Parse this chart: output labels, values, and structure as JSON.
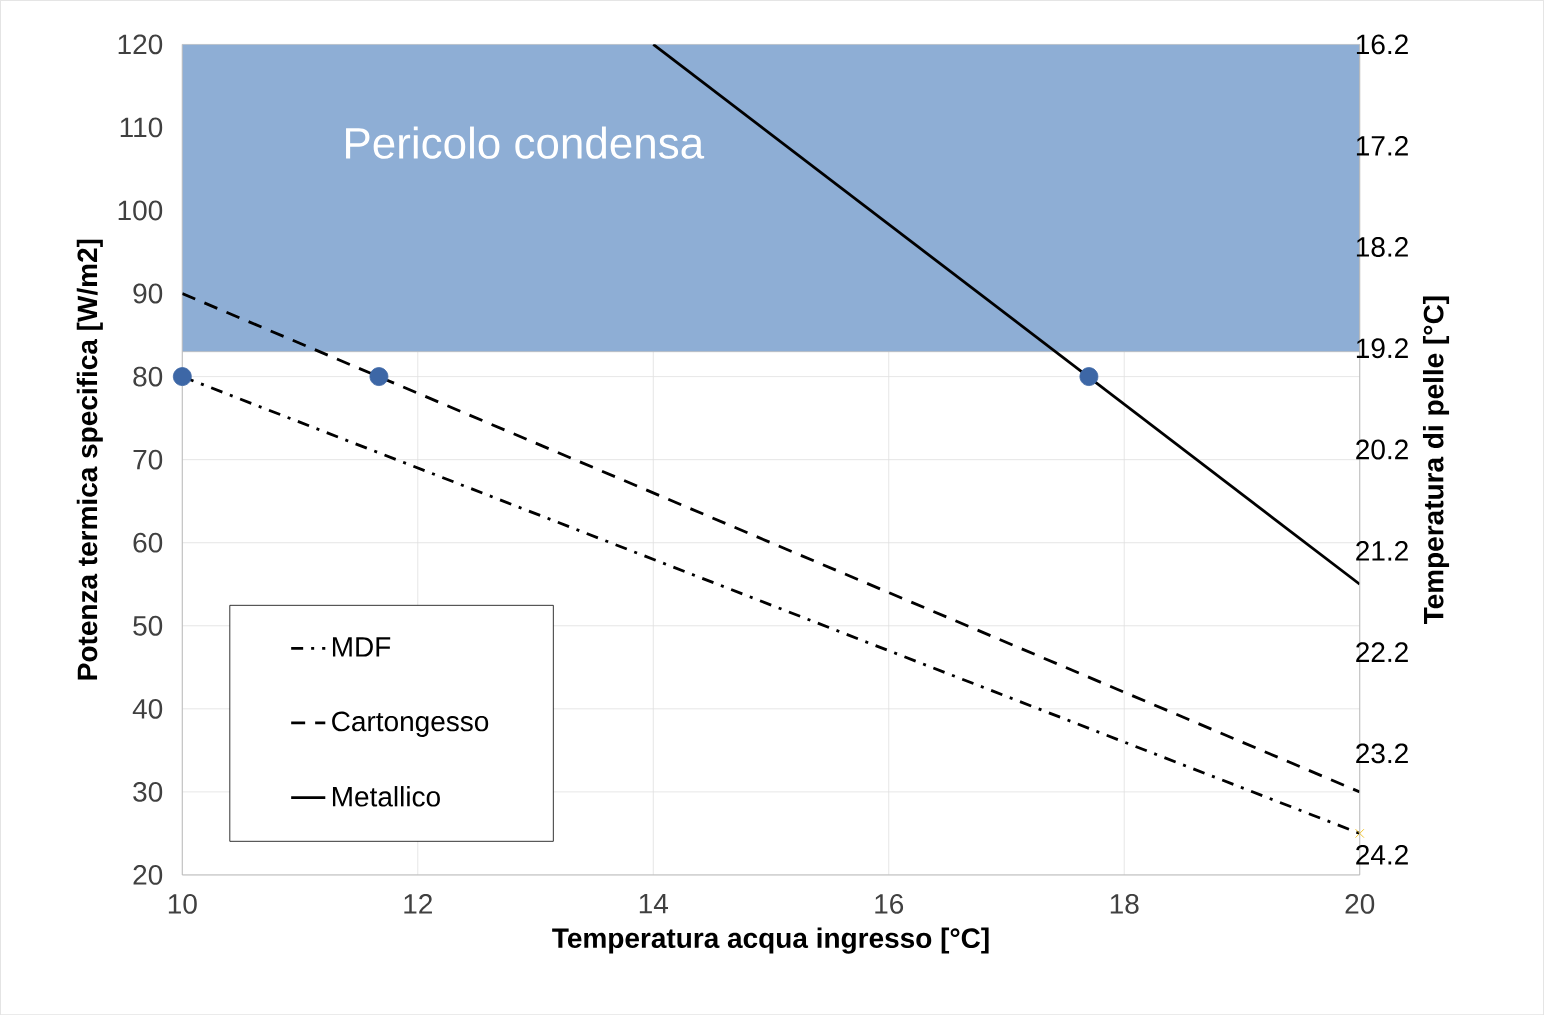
{
  "chart_data": {
    "type": "line",
    "xlabel": "Temperatura acqua ingresso [°C]",
    "ylabel": "Potenza termica specifica [W/m2]",
    "y2label": "Temperatura di pelle [°C]",
    "xlim": [
      10,
      20
    ],
    "xticks": [
      10,
      12,
      14,
      16,
      18,
      20
    ],
    "ylim": [
      20,
      120
    ],
    "yticks": [
      20,
      30,
      40,
      50,
      60,
      70,
      80,
      90,
      100,
      110,
      120
    ],
    "y2lim": [
      24.4,
      16.2
    ],
    "y2ticks": [
      16.2,
      17.2,
      18.2,
      19.2,
      20.2,
      21.2,
      22.2,
      23.2,
      24.2
    ],
    "grid": true,
    "legend": "bottom left",
    "bands": [
      {
        "axis": "y",
        "from": 83,
        "to": 120,
        "label": "Pericolo condensa",
        "color": "#8eaed5"
      }
    ],
    "series": [
      {
        "name": "MDF",
        "color": "#000000",
        "line_style": "dashdot",
        "x": [
          10,
          20
        ],
        "values": [
          80,
          25
        ]
      },
      {
        "name": "Cartongesso",
        "color": "#000000",
        "line_style": "dashed",
        "x": [
          10,
          20
        ],
        "values": [
          90,
          30
        ]
      },
      {
        "name": "Metallico",
        "color": "#000000",
        "line_style": "solid",
        "x": [
          14,
          20
        ],
        "values": [
          120,
          55
        ]
      },
      {
        "type": "scatter",
        "color": "#3d67a6",
        "marker": "circle",
        "x": [
          10,
          11.67,
          17.7
        ],
        "values": [
          80,
          80,
          80
        ]
      },
      {
        "type": "scatter",
        "color": "#f0b800",
        "marker": "cross",
        "x": [
          20
        ],
        "values": [
          25
        ]
      }
    ]
  }
}
